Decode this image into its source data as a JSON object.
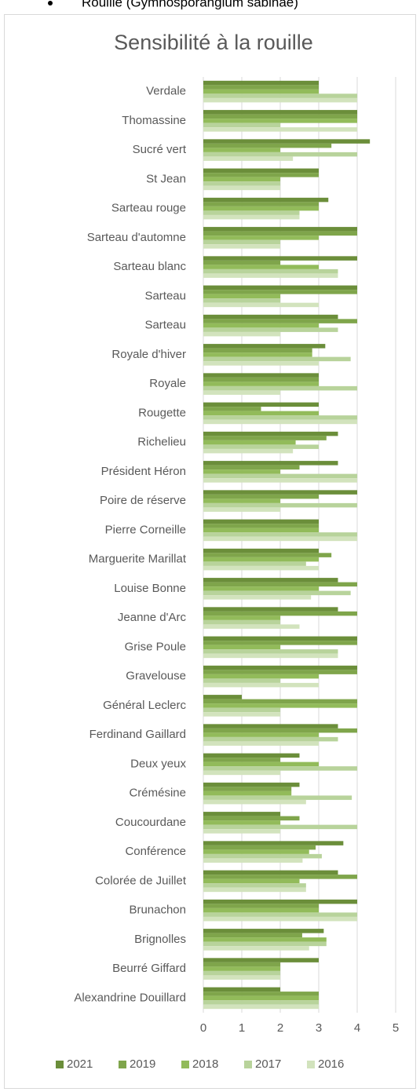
{
  "heading": "Rouille (Gymnosporangium sabinae)",
  "chart_data": {
    "type": "hbar",
    "title": "Sensibilité à la rouille",
    "categories": [
      "Verdale",
      "Thomassine",
      "Sucré vert",
      "St Jean",
      "Sarteau rouge",
      "Sarteau d'automne",
      "Sarteau blanc",
      "Sarteau ",
      "Sarteau",
      "Royale d'hiver",
      "Royale",
      "Rougette",
      "Richelieu",
      "Président  Héron",
      "Poire de réserve",
      "Pierre  Corneille",
      "Marguerite Marillat",
      "Louise Bonne",
      "Jeanne d'Arc",
      "Grise Poule",
      "Gravelouse",
      "Général Leclerc",
      "Ferdinand Gaillard",
      "Deux yeux",
      "Crémésine",
      "Coucourdane",
      "Conférence",
      "Colorée de Juillet",
      "Brunachon",
      "Brignolles",
      "Beurré Giffard",
      "Alexandrine Douillard"
    ],
    "series": [
      {
        "name": "2021",
        "color": "#6b8e3a",
        "values": [
          3,
          4,
          4.33,
          3,
          3.25,
          4,
          4,
          4,
          3.5,
          3.17,
          3,
          3,
          3.5,
          3.5,
          4,
          3,
          3,
          3.5,
          3.5,
          4,
          4,
          1,
          3.5,
          2.5,
          2.5,
          2,
          3.64,
          3.5,
          4,
          3.13,
          3,
          2
        ]
      },
      {
        "name": "2019",
        "color": "#7fa54b",
        "values": [
          3,
          4,
          3.33,
          3,
          3,
          4,
          2,
          4,
          4,
          2.83,
          3,
          1.5,
          3.2,
          2.5,
          3,
          3,
          3.33,
          4,
          4,
          4,
          4,
          4,
          4,
          2,
          2.29,
          2.5,
          2.92,
          4,
          3,
          2.57,
          2,
          3
        ]
      },
      {
        "name": "2018",
        "color": "#92bb5a",
        "values": [
          3,
          4,
          2,
          2,
          3,
          3,
          3,
          2,
          3,
          2.83,
          3,
          3,
          2.4,
          2,
          2,
          3,
          3,
          3,
          2,
          2,
          3,
          4,
          3,
          3,
          2.29,
          2,
          2.75,
          2.5,
          3,
          3.2,
          2,
          3
        ]
      },
      {
        "name": "2017",
        "color": "#b8d39b",
        "values": [
          4,
          2,
          4,
          2,
          2.5,
          2,
          3.5,
          2,
          3.5,
          3.83,
          4,
          4,
          3,
          4,
          4,
          4,
          2.67,
          3.83,
          2,
          3.5,
          2,
          2,
          3.5,
          4,
          3.86,
          4,
          3.08,
          2.67,
          4,
          3.2,
          2,
          3
        ]
      },
      {
        "name": "2016",
        "color": "#d2e3bd",
        "values": [
          4,
          4,
          2.33,
          2,
          2.5,
          2,
          3.5,
          3,
          2,
          3,
          2,
          4,
          2.33,
          4,
          2,
          4,
          3,
          2.8,
          2.5,
          3.5,
          3,
          2,
          3,
          2,
          2.67,
          2,
          2.58,
          2.67,
          4,
          2.75,
          2,
          3
        ]
      }
    ],
    "xlim": [
      0,
      5
    ],
    "xticks": [
      0,
      1,
      2,
      3,
      4,
      5
    ],
    "grid": true,
    "legend": "bottom"
  }
}
